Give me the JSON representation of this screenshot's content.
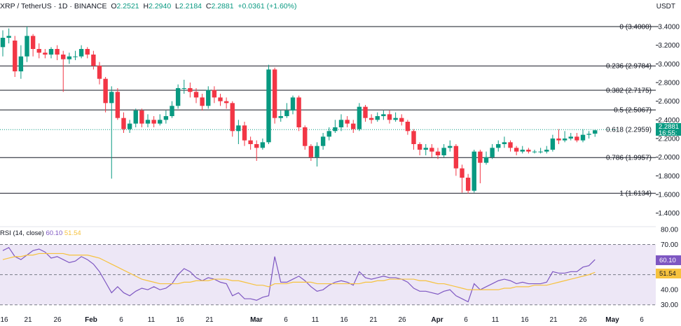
{
  "header": {
    "symbol": "XRP / TetherUS · 1D · BINANCE",
    "o_label": "O",
    "o": "2.2521",
    "h_label": "H",
    "h": "2.2940",
    "l_label": "L",
    "l": "2.2184",
    "c_label": "C",
    "c": "2.2881",
    "change": "+0.0361 (+1.60%)"
  },
  "currency": "USDT",
  "price_tag": {
    "price": "2.2881",
    "countdown": "16:55:"
  },
  "rsi_legend": {
    "label": "RSI (14, close)",
    "rsi": "60.10",
    "ma": "51.54"
  },
  "rsi_tags": {
    "rsi": "60.10",
    "ma": "51.54"
  },
  "colors": {
    "up": "#089981",
    "down": "#f23645",
    "rsi": "#7e57c2",
    "rsi_ma": "#f6c23e",
    "band": "#ede7f6"
  },
  "chart_data": [
    {
      "type": "candlestick",
      "title": "XRP / TetherUS · 1D · BINANCE",
      "y_axis_ticks": [
        "3.4000",
        "3.2000",
        "3.0000",
        "2.8000",
        "2.6000",
        "2.4000",
        "2.2000",
        "2.0000",
        "1.8000",
        "1.6000",
        "1.4000"
      ],
      "ylim": [
        1.3,
        3.55
      ],
      "x_axis_ticks": [
        "16",
        "21",
        "26",
        "Feb",
        "6",
        "11",
        "16",
        "21",
        "Mar",
        "6",
        "11",
        "16",
        "21",
        "26",
        "Apr",
        "6",
        "11",
        "16",
        "21",
        "26",
        "May",
        "6"
      ],
      "fib_levels": [
        {
          "label": "0 (3.4000)",
          "value": 3.4
        },
        {
          "label": "0.236 (2.9784)",
          "value": 2.9784
        },
        {
          "label": "0.382 (2.7175)",
          "value": 2.7175
        },
        {
          "label": "0.5 (2.5067)",
          "value": 2.5067
        },
        {
          "label": "0.618 (2.2959)",
          "value": 2.2959
        },
        {
          "label": "0.786 (1.9957)",
          "value": 1.9957
        },
        {
          "label": "1 (1.6134)",
          "value": 1.6134
        }
      ],
      "candles": [
        [
          3.18,
          3.28,
          3.36,
          3.08
        ],
        [
          3.28,
          3.3,
          3.38,
          3.22
        ],
        [
          3.25,
          2.92,
          3.3,
          2.86
        ],
        [
          2.92,
          3.08,
          3.2,
          2.84
        ],
        [
          3.08,
          3.3,
          3.4,
          3.02
        ],
        [
          3.3,
          3.16,
          3.32,
          3.08
        ],
        [
          3.16,
          3.12,
          3.22,
          3.06
        ],
        [
          3.12,
          3.1,
          3.16,
          3.06
        ],
        [
          3.1,
          3.16,
          3.18,
          3.06
        ],
        [
          3.16,
          3.1,
          3.2,
          3.04
        ],
        [
          3.1,
          3.05,
          3.14,
          2.7
        ],
        [
          3.05,
          3.08,
          3.12,
          3.0
        ],
        [
          3.08,
          3.08,
          3.14,
          3.04
        ],
        [
          3.08,
          3.16,
          3.2,
          3.06
        ],
        [
          3.16,
          3.1,
          3.18,
          3.06
        ],
        [
          3.1,
          2.98,
          3.14,
          2.94
        ],
        [
          2.98,
          2.84,
          3.02,
          2.78
        ],
        [
          2.84,
          2.58,
          2.86,
          2.48
        ],
        [
          2.58,
          2.7,
          2.76,
          1.77
        ],
        [
          2.7,
          2.42,
          2.74,
          2.4
        ],
        [
          2.42,
          2.3,
          2.48,
          2.26
        ],
        [
          2.3,
          2.36,
          2.4,
          2.26
        ],
        [
          2.36,
          2.5,
          2.52,
          2.32
        ],
        [
          2.5,
          2.36,
          2.52,
          2.32
        ],
        [
          2.36,
          2.4,
          2.46,
          2.32
        ],
        [
          2.4,
          2.36,
          2.44,
          2.32
        ],
        [
          2.36,
          2.4,
          2.46,
          2.34
        ],
        [
          2.4,
          2.44,
          2.5,
          2.36
        ],
        [
          2.44,
          2.55,
          2.6,
          2.42
        ],
        [
          2.55,
          2.74,
          2.78,
          2.52
        ],
        [
          2.74,
          2.74,
          2.83,
          2.68
        ],
        [
          2.74,
          2.7,
          2.8,
          2.64
        ],
        [
          2.7,
          2.64,
          2.74,
          2.58
        ],
        [
          2.64,
          2.55,
          2.68,
          2.5
        ],
        [
          2.55,
          2.72,
          2.76,
          2.52
        ],
        [
          2.72,
          2.64,
          2.76,
          2.58
        ],
        [
          2.64,
          2.6,
          2.68,
          2.55
        ],
        [
          2.6,
          2.58,
          2.64,
          2.52
        ],
        [
          2.58,
          2.28,
          2.6,
          2.22
        ],
        [
          2.28,
          2.34,
          2.4,
          2.14
        ],
        [
          2.34,
          2.18,
          2.38,
          2.12
        ],
        [
          2.18,
          2.14,
          2.22,
          2.08
        ],
        [
          2.14,
          2.1,
          2.18,
          1.96
        ],
        [
          2.1,
          2.16,
          2.2,
          2.08
        ],
        [
          2.16,
          2.94,
          2.99,
          2.14
        ],
        [
          2.94,
          2.42,
          2.96,
          2.36
        ],
        [
          2.42,
          2.44,
          2.5,
          2.38
        ],
        [
          2.44,
          2.5,
          2.58,
          2.42
        ],
        [
          2.5,
          2.64,
          2.66,
          2.46
        ],
        [
          2.64,
          2.32,
          2.66,
          2.28
        ],
        [
          2.32,
          2.12,
          2.34,
          2.08
        ],
        [
          2.12,
          2.0,
          2.14,
          1.96
        ],
        [
          2.0,
          2.12,
          2.16,
          1.9
        ],
        [
          2.12,
          2.22,
          2.26,
          2.08
        ],
        [
          2.22,
          2.28,
          2.32,
          2.18
        ],
        [
          2.28,
          2.32,
          2.4,
          2.26
        ],
        [
          2.32,
          2.4,
          2.46,
          2.28
        ],
        [
          2.4,
          2.36,
          2.44,
          2.32
        ],
        [
          2.36,
          2.3,
          2.4,
          2.26
        ],
        [
          2.3,
          2.54,
          2.58,
          2.28
        ],
        [
          2.54,
          2.42,
          2.56,
          2.38
        ],
        [
          2.42,
          2.4,
          2.46,
          2.36
        ],
        [
          2.4,
          2.44,
          2.48,
          2.38
        ],
        [
          2.44,
          2.46,
          2.5,
          2.4
        ],
        [
          2.46,
          2.4,
          2.5,
          2.36
        ],
        [
          2.4,
          2.42,
          2.48,
          2.38
        ],
        [
          2.42,
          2.38,
          2.46,
          2.34
        ],
        [
          2.38,
          2.28,
          2.4,
          2.24
        ],
        [
          2.28,
          2.14,
          2.3,
          2.08
        ],
        [
          2.14,
          2.08,
          2.16,
          2.02
        ],
        [
          2.08,
          2.1,
          2.14,
          2.02
        ],
        [
          2.1,
          2.06,
          2.14,
          2.0
        ],
        [
          2.06,
          2.02,
          2.1,
          1.98
        ],
        [
          2.02,
          2.1,
          2.14,
          2.0
        ],
        [
          2.1,
          2.12,
          2.18,
          2.06
        ],
        [
          2.12,
          1.88,
          2.14,
          1.8
        ],
        [
          1.88,
          1.78,
          1.92,
          1.62
        ],
        [
          1.78,
          1.64,
          1.82,
          1.61
        ],
        [
          1.64,
          2.06,
          2.08,
          1.62
        ],
        [
          2.06,
          1.94,
          2.08,
          1.72
        ],
        [
          1.94,
          2.0,
          2.06,
          1.92
        ],
        [
          2.0,
          2.1,
          2.14,
          1.98
        ],
        [
          2.1,
          2.14,
          2.18,
          2.06
        ],
        [
          2.14,
          2.16,
          2.22,
          2.1
        ],
        [
          2.16,
          2.1,
          2.18,
          2.06
        ],
        [
          2.1,
          2.06,
          2.12,
          2.02
        ],
        [
          2.06,
          2.08,
          2.12,
          2.04
        ],
        [
          2.08,
          2.06,
          2.1,
          2.04
        ],
        [
          2.06,
          2.06,
          2.08,
          2.04
        ],
        [
          2.06,
          2.06,
          2.1,
          2.04
        ],
        [
          2.06,
          2.08,
          2.12,
          2.04
        ],
        [
          2.08,
          2.2,
          2.24,
          2.06
        ],
        [
          2.2,
          2.18,
          2.3,
          2.14
        ],
        [
          2.18,
          2.2,
          2.28,
          2.16
        ],
        [
          2.2,
          2.22,
          2.26,
          2.18
        ],
        [
          2.22,
          2.18,
          2.26,
          2.16
        ],
        [
          2.18,
          2.24,
          2.3,
          2.16
        ],
        [
          2.24,
          2.25,
          2.28,
          2.2
        ],
        [
          2.2521,
          2.2881,
          2.294,
          2.2184
        ]
      ]
    },
    {
      "type": "line",
      "title": "RSI (14, close)",
      "y_axis_ticks": [
        "80.00",
        "70.00",
        "50.00",
        "40.00",
        "30.00"
      ],
      "ylim": [
        28,
        80
      ],
      "bands": [
        30,
        70
      ],
      "series": [
        {
          "name": "RSI",
          "values": [
            66,
            68,
            62,
            60,
            63,
            66,
            67,
            65,
            61,
            62,
            60,
            58,
            59,
            62,
            60,
            57,
            52,
            45,
            38,
            42,
            38,
            36,
            39,
            41,
            40,
            42,
            40,
            41,
            44,
            50,
            54,
            52,
            48,
            46,
            48,
            47,
            45,
            44,
            36,
            38,
            34,
            34,
            33,
            35,
            36,
            62,
            45,
            45,
            47,
            49,
            46,
            42,
            39,
            40,
            43,
            45,
            46,
            45,
            43,
            52,
            48,
            47,
            48,
            49,
            48,
            48,
            47,
            45,
            41,
            39,
            39,
            38,
            37,
            39,
            40,
            36,
            34,
            32,
            44,
            40,
            42,
            44,
            46,
            47,
            46,
            44,
            45,
            44,
            44,
            44,
            45,
            52,
            51,
            51,
            52,
            52,
            55,
            56,
            60
          ]
        },
        {
          "name": "MA",
          "values": [
            60,
            61,
            62,
            62,
            63,
            63,
            64,
            64,
            64,
            64,
            64,
            63,
            63,
            63,
            63,
            62,
            61,
            59,
            57,
            55,
            53,
            51,
            49,
            47,
            46,
            45,
            44,
            44,
            44,
            44,
            45,
            45,
            46,
            46,
            46,
            47,
            47,
            47,
            46,
            46,
            45,
            44,
            43,
            43,
            42,
            44,
            44,
            44,
            45,
            45,
            45,
            45,
            44,
            44,
            44,
            44,
            44,
            44,
            44,
            44,
            45,
            45,
            46,
            46,
            47,
            47,
            47,
            47,
            47,
            46,
            46,
            45,
            44,
            44,
            43,
            42,
            41,
            40,
            40,
            40,
            40,
            40,
            40,
            41,
            41,
            42,
            42,
            42,
            43,
            43,
            43,
            44,
            45,
            46,
            47,
            48,
            49,
            50,
            51.54
          ]
        }
      ]
    }
  ]
}
